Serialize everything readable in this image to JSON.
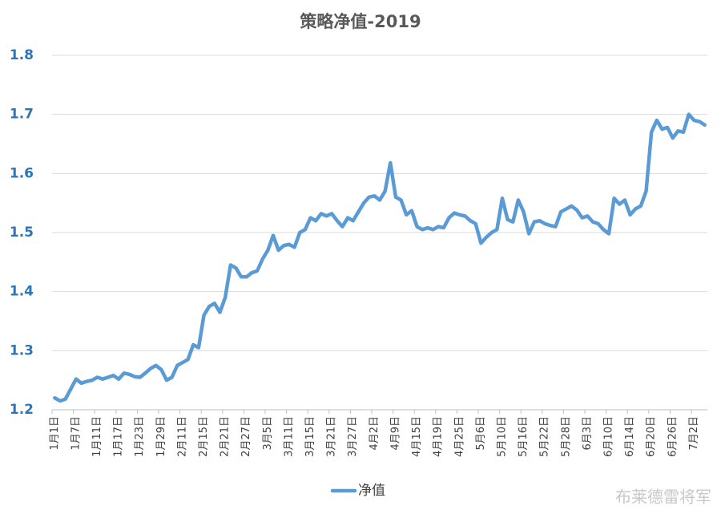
{
  "chart_data": {
    "type": "line",
    "title": "策略净值-2019",
    "categories": [
      "1月1日",
      null,
      null,
      null,
      "1月7日",
      null,
      null,
      null,
      "1月11日",
      null,
      null,
      null,
      "1月17日",
      null,
      null,
      null,
      "1月23日",
      null,
      null,
      null,
      "1月29日",
      null,
      null,
      null,
      "2月11日",
      null,
      null,
      null,
      "2月15日",
      null,
      null,
      null,
      "2月21日",
      null,
      null,
      null,
      "2月27日",
      null,
      null,
      null,
      "3月5日",
      null,
      null,
      null,
      "3月11日",
      null,
      null,
      null,
      "3月15日",
      null,
      null,
      null,
      "3月21日",
      null,
      null,
      null,
      "3月27日",
      null,
      null,
      null,
      "4月2日",
      null,
      null,
      null,
      "4月9日",
      null,
      null,
      null,
      "4月15日",
      null,
      null,
      null,
      "4月19日",
      null,
      null,
      null,
      "4月25日",
      null,
      null,
      null,
      "5月6日",
      null,
      null,
      null,
      "5月10日",
      null,
      null,
      null,
      "5月16日",
      null,
      null,
      null,
      "5月22日",
      null,
      null,
      null,
      "5月28日",
      null,
      null,
      null,
      "6月3日",
      null,
      null,
      null,
      "6月10日",
      null,
      null,
      null,
      "6月14日",
      null,
      null,
      null,
      "6月20日",
      null,
      null,
      null,
      "6月26日",
      null,
      null,
      null,
      "7月2日",
      null,
      null
    ],
    "series": [
      {
        "name": "净值",
        "color": "#5b9bd5",
        "values": [
          1.22,
          1.215,
          1.218,
          1.235,
          1.252,
          1.245,
          1.248,
          1.25,
          1.255,
          1.252,
          1.255,
          1.258,
          1.252,
          1.262,
          1.26,
          1.256,
          1.255,
          1.262,
          1.27,
          1.275,
          1.268,
          1.25,
          1.255,
          1.275,
          1.28,
          1.285,
          1.31,
          1.305,
          1.36,
          1.375,
          1.38,
          1.365,
          1.39,
          1.445,
          1.44,
          1.425,
          1.425,
          1.432,
          1.435,
          1.455,
          1.47,
          1.495,
          1.47,
          1.478,
          1.48,
          1.475,
          1.5,
          1.505,
          1.525,
          1.52,
          1.532,
          1.528,
          1.532,
          1.52,
          1.51,
          1.525,
          1.52,
          1.535,
          1.55,
          1.56,
          1.562,
          1.555,
          1.57,
          1.618,
          1.56,
          1.555,
          1.53,
          1.537,
          1.51,
          1.505,
          1.508,
          1.505,
          1.51,
          1.508,
          1.525,
          1.533,
          1.53,
          1.528,
          1.52,
          1.515,
          1.482,
          1.492,
          1.5,
          1.505,
          1.558,
          1.522,
          1.518,
          1.555,
          1.535,
          1.498,
          1.518,
          1.52,
          1.515,
          1.512,
          1.51,
          1.535,
          1.54,
          1.545,
          1.538,
          1.525,
          1.528,
          1.518,
          1.515,
          1.505,
          1.498,
          1.558,
          1.548,
          1.555,
          1.53,
          1.54,
          1.545,
          1.57,
          1.67,
          1.69,
          1.675,
          1.678,
          1.66,
          1.672,
          1.67,
          1.7,
          1.69,
          1.688,
          1.682
        ]
      }
    ],
    "ylim": [
      1.2,
      1.8
    ],
    "yticks": [
      1.2,
      1.3,
      1.4,
      1.5,
      1.6,
      1.7,
      1.8
    ],
    "grid": true,
    "legend": "bottom"
  },
  "watermark": "布莱德雷将军"
}
